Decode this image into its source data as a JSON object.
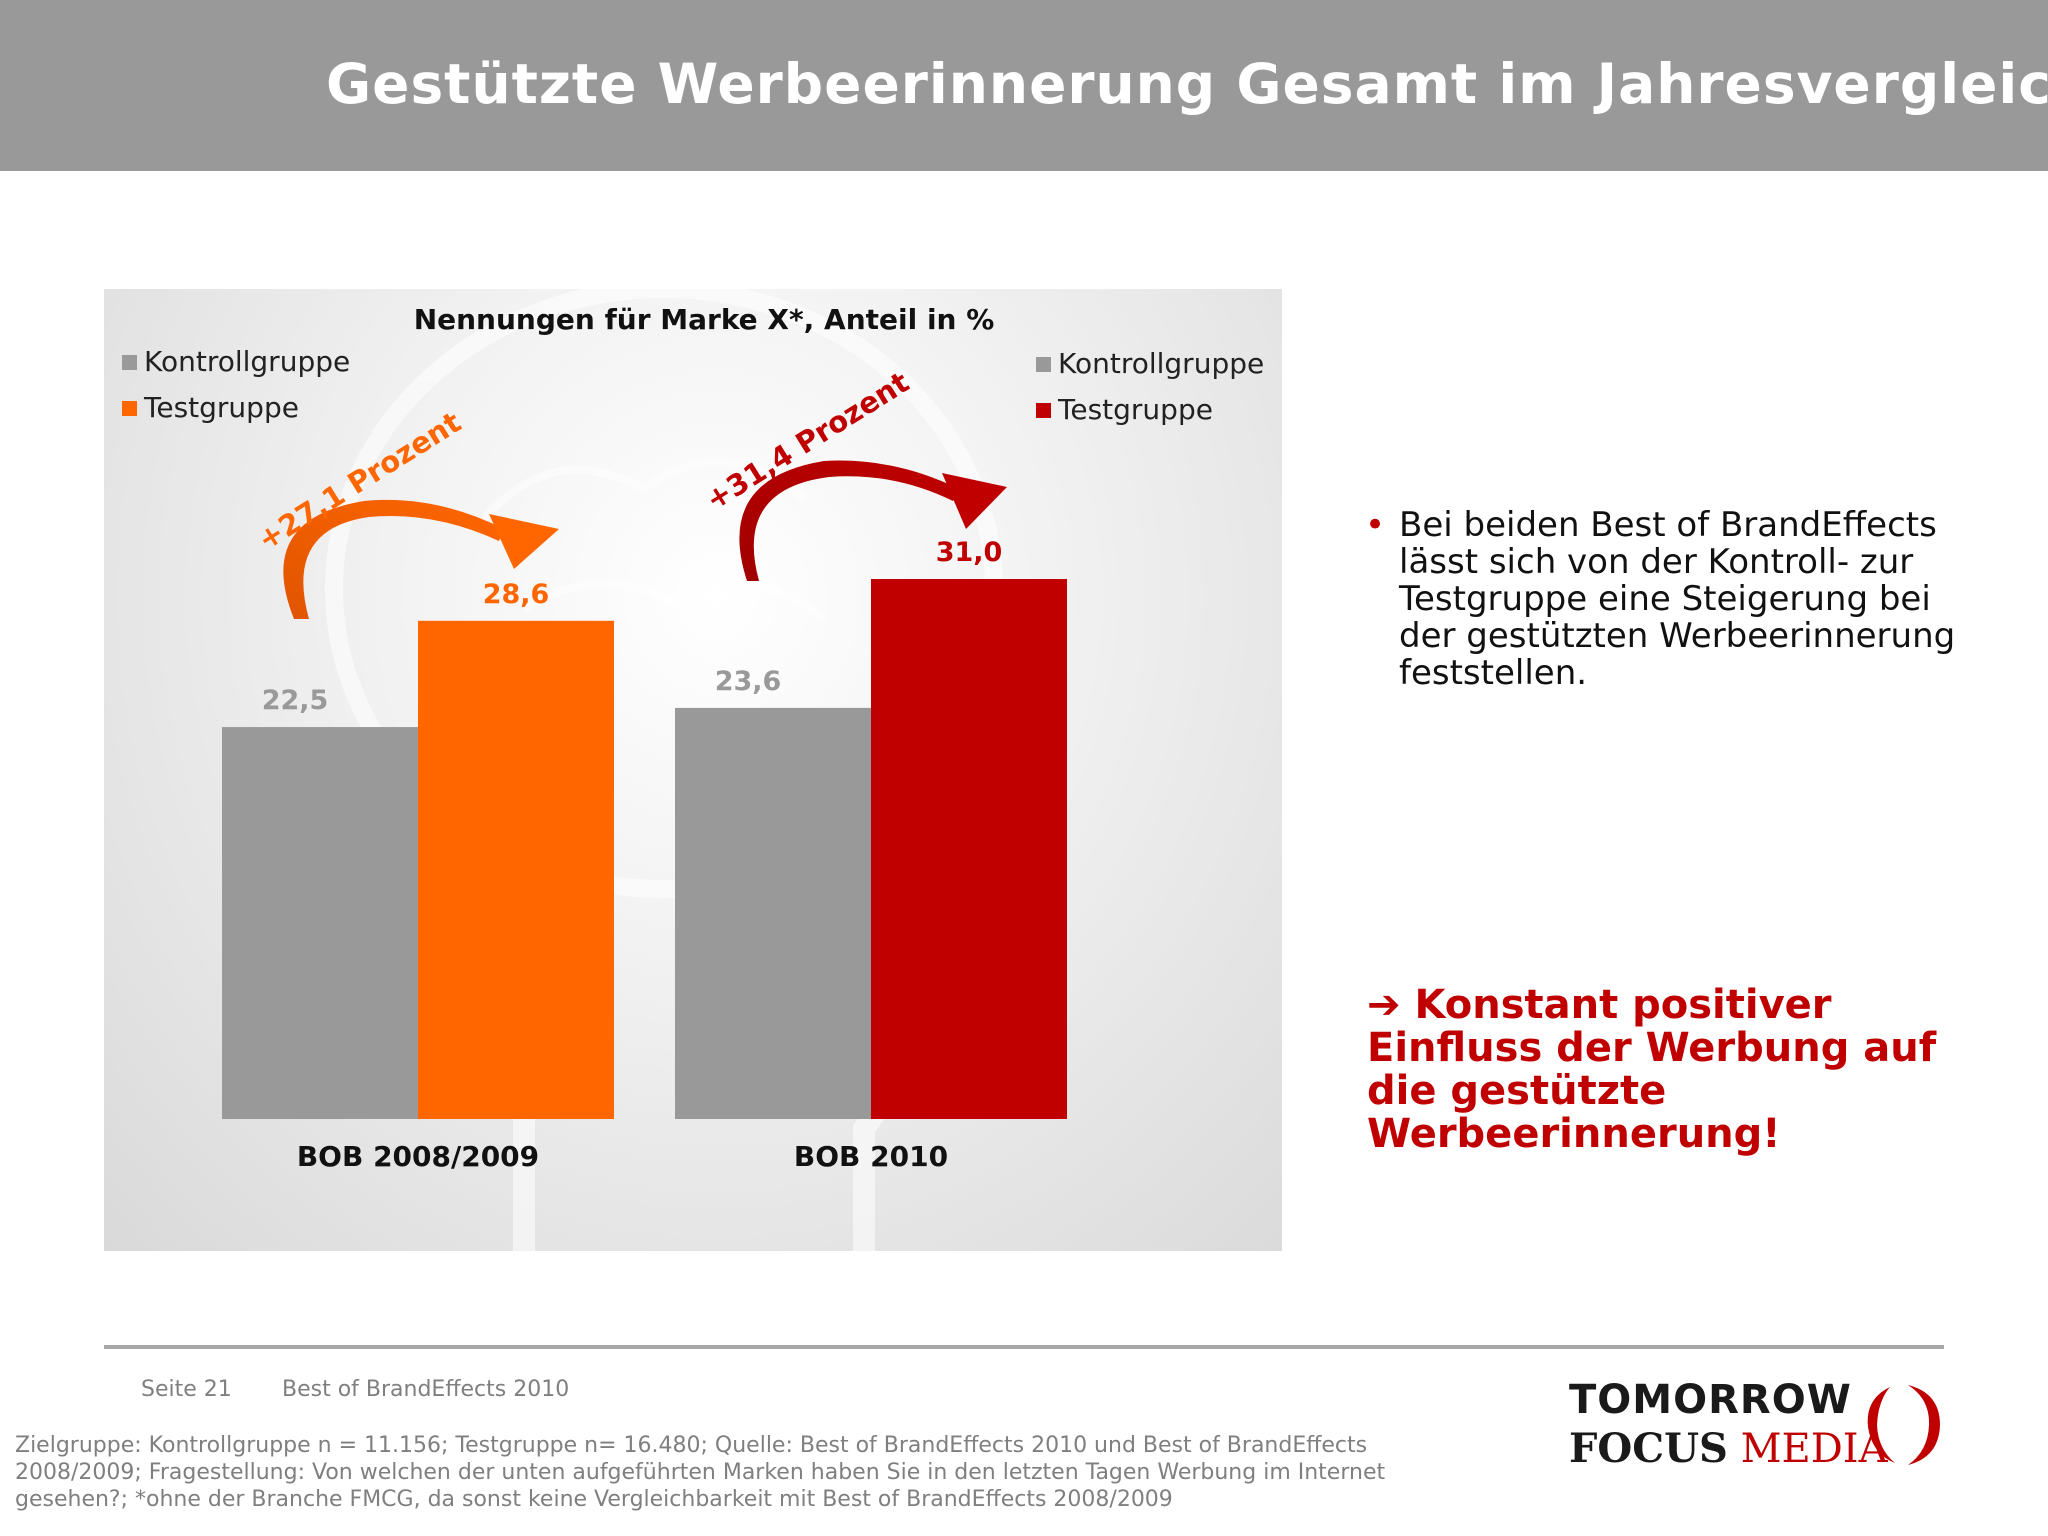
{
  "header": {
    "title": "Gestützte Werbeerinnerung Gesamt im Jahresvergleich"
  },
  "chart_data": {
    "type": "bar",
    "title": "Nennungen für Marke X*, Anteil in %",
    "categories": [
      "BOB 2008/2009",
      "BOB 2010"
    ],
    "series": [
      {
        "name": "Kontrollgruppe",
        "values": [
          22.5,
          23.6
        ],
        "labels": [
          "22,5",
          "23,6"
        ]
      },
      {
        "name": "Testgruppe",
        "values": [
          28.6,
          31.0
        ],
        "labels": [
          "28,6",
          "31,0"
        ]
      }
    ],
    "legends": [
      {
        "position": "top-left",
        "items": [
          "Kontrollgruppe",
          "Testgruppe"
        ],
        "colors": [
          "#999999",
          "#ff6600"
        ]
      },
      {
        "position": "top-right",
        "items": [
          "Kontrollgruppe",
          "Testgruppe"
        ],
        "colors": [
          "#999999",
          "#c00000"
        ]
      }
    ],
    "bar_colors": [
      [
        "#999999",
        "#ff6600"
      ],
      [
        "#999999",
        "#c00000"
      ]
    ],
    "annotations": [
      "+27,1 Prozent",
      "+31,4 Prozent"
    ],
    "annotation_colors": [
      "#ff6600",
      "#c00000"
    ],
    "ylim": [
      0,
      40
    ],
    "grid": false
  },
  "bullets": [
    "Bei beiden Best of BrandEffects\nlässt sich von der Kontroll- zur\nTestgruppe eine Steigerung bei\nder gestützten Werbeerinnerung\nfeststellen."
  ],
  "conclusion": "➔ Konstant positiver\nEinfluss der Werbung auf\ndie gestützte\nWerbeerinnerung!",
  "footer": {
    "page": "Seite 21",
    "document": "Best of BrandEffects 2010",
    "footnote": "Zielgruppe: Kontrollgruppe n = 11.156; Testgruppe n= 16.480; Quelle: Best of BrandEffects 2010 und Best of BrandEffects 2008/2009; Fragestellung: Von welchen der unten aufgeführten Marken haben Sie in den letzten Tagen Werbung im Internet gesehen?; *ohne der Branche FMCG, da sonst keine Vergleichbarkeit mit Best of BrandEffects 2008/2009"
  },
  "logo": {
    "line1": "TOMORROW",
    "focus": "FOCUS",
    "media": "MEDIA"
  },
  "colors": {
    "accent_red": "#c00000",
    "accent_orange": "#ff6600",
    "grey": "#999999"
  }
}
